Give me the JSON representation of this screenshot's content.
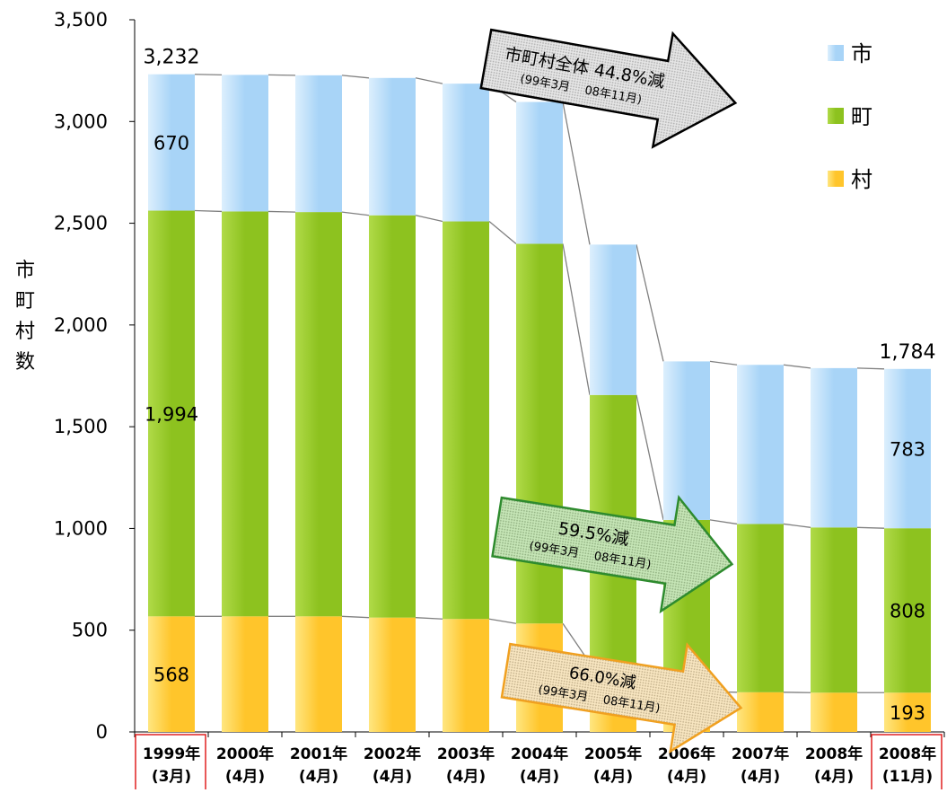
{
  "chart_data": {
    "type": "bar",
    "stacked": true,
    "ylabel": "市町村数",
    "ylim": [
      0,
      3500
    ],
    "yticks": [
      "0",
      "500",
      "1,000",
      "1,500",
      "2,000",
      "2,500",
      "3,000",
      "3,500"
    ],
    "ytick_values": [
      0,
      500,
      1000,
      1500,
      2000,
      2500,
      3000,
      3500
    ],
    "grid": false,
    "legend_position": "top-right",
    "categories": [
      {
        "year": "1999年",
        "month": "(3月)",
        "highlight": true
      },
      {
        "year": "2000年",
        "month": "(4月)",
        "highlight": false
      },
      {
        "year": "2001年",
        "month": "(4月)",
        "highlight": false
      },
      {
        "year": "2002年",
        "month": "(4月)",
        "highlight": false
      },
      {
        "year": "2003年",
        "month": "(4月)",
        "highlight": false
      },
      {
        "year": "2004年",
        "month": "(4月)",
        "highlight": false
      },
      {
        "year": "2005年",
        "month": "(4月)",
        "highlight": false
      },
      {
        "year": "2006年",
        "month": "(4月)",
        "highlight": false
      },
      {
        "year": "2007年",
        "month": "(4月)",
        "highlight": false
      },
      {
        "year": "2008年",
        "month": "(4月)",
        "highlight": false
      },
      {
        "year": "2008年",
        "month": "(11月)",
        "highlight": true
      }
    ],
    "series": [
      {
        "name": "村",
        "key": "mura",
        "color": "#FFC52B",
        "light": "#FFE680",
        "values": [
          568,
          568,
          568,
          562,
          555,
          533,
          339,
          198,
          195,
          193,
          193
        ]
      },
      {
        "name": "町",
        "key": "machi",
        "color": "#8DC21F",
        "light": "#B0DA48",
        "values": [
          1994,
          1990,
          1987,
          1977,
          1954,
          1866,
          1317,
          844,
          827,
          812,
          808
        ]
      },
      {
        "name": "市",
        "key": "shi",
        "color": "#A8D4F7",
        "light": "#DCEFFD",
        "values": [
          670,
          671,
          672,
          675,
          677,
          697,
          739,
          779,
          782,
          783,
          783
        ]
      }
    ],
    "totals": [
      3232,
      3229,
      3227,
      3214,
      3186,
      3096,
      2395,
      1821,
      1804,
      1788,
      1784
    ],
    "total_labels": [
      {
        "index": 0,
        "text": "3,232"
      },
      {
        "index": 10,
        "text": "1,784"
      }
    ],
    "segment_labels": [
      {
        "index": 0,
        "series": "shi",
        "text": "670"
      },
      {
        "index": 0,
        "series": "machi",
        "text": "1,994"
      },
      {
        "index": 0,
        "series": "mura",
        "text": "568"
      },
      {
        "index": 10,
        "series": "shi",
        "text": "783"
      },
      {
        "index": 10,
        "series": "machi",
        "text": "808"
      },
      {
        "index": 10,
        "series": "mura",
        "text": "193"
      }
    ],
    "legend": [
      {
        "name": "市",
        "series": "shi"
      },
      {
        "name": "町",
        "series": "machi"
      },
      {
        "name": "村",
        "series": "mura"
      }
    ],
    "annotations": [
      {
        "key": "total",
        "line1": "市町村全体 44.8%減",
        "line2": "(99年3月　 08年11月)",
        "fill": "#D8D8D8",
        "stroke": "#000000"
      },
      {
        "key": "machi",
        "line1": "59.5%減",
        "line2": "(99年3月　 08年11月)",
        "fill": "#A8D890",
        "stroke": "#2E8B2E"
      },
      {
        "key": "mura",
        "line1": "66.0%減",
        "line2": "(99年3月　 08年11月)",
        "fill": "#F5D9A0",
        "stroke": "#F0A020"
      }
    ]
  }
}
